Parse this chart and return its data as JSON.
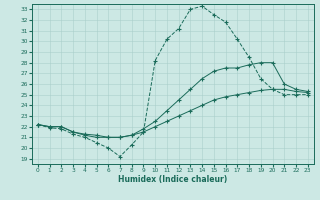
{
  "xlabel": "Humidex (Indice chaleur)",
  "bg_color": "#cce8e4",
  "line_color": "#1a6b5a",
  "grid_color": "#aacfcb",
  "xlim": [
    -0.5,
    23.5
  ],
  "ylim": [
    18.5,
    33.5
  ],
  "xticks": [
    0,
    1,
    2,
    3,
    4,
    5,
    6,
    7,
    8,
    9,
    10,
    11,
    12,
    13,
    14,
    15,
    16,
    17,
    18,
    19,
    20,
    21,
    22,
    23
  ],
  "yticks": [
    19,
    20,
    21,
    22,
    23,
    24,
    25,
    26,
    27,
    28,
    29,
    30,
    31,
    32,
    33
  ],
  "curve1_x": [
    0,
    1,
    2,
    3,
    4,
    5,
    6,
    7,
    8,
    9,
    10,
    11,
    12,
    13,
    14,
    15,
    16,
    17,
    18,
    19,
    20,
    21,
    22,
    23
  ],
  "curve1_y": [
    22.2,
    21.9,
    21.8,
    21.3,
    21.0,
    20.5,
    20.0,
    19.2,
    20.3,
    21.5,
    28.2,
    30.2,
    31.2,
    33.0,
    33.3,
    32.5,
    31.8,
    30.2,
    28.5,
    26.5,
    25.5,
    25.0,
    25.0,
    25.0
  ],
  "curve2_x": [
    0,
    1,
    2,
    3,
    4,
    5,
    6,
    7,
    8,
    9,
    10,
    11,
    12,
    13,
    14,
    15,
    16,
    17,
    18,
    19,
    20,
    21,
    22,
    23
  ],
  "curve2_y": [
    22.2,
    22.0,
    22.0,
    21.5,
    21.2,
    21.0,
    21.0,
    21.0,
    21.2,
    21.8,
    22.5,
    23.5,
    24.5,
    25.5,
    26.5,
    27.2,
    27.5,
    27.5,
    27.8,
    28.0,
    28.0,
    26.0,
    25.5,
    25.3
  ],
  "curve3_x": [
    0,
    1,
    2,
    3,
    4,
    5,
    6,
    7,
    8,
    9,
    10,
    11,
    12,
    13,
    14,
    15,
    16,
    17,
    18,
    19,
    20,
    21,
    22,
    23
  ],
  "curve3_y": [
    22.2,
    22.0,
    22.0,
    21.5,
    21.3,
    21.2,
    21.0,
    21.0,
    21.2,
    21.5,
    22.0,
    22.5,
    23.0,
    23.5,
    24.0,
    24.5,
    24.8,
    25.0,
    25.2,
    25.4,
    25.5,
    25.5,
    25.3,
    25.2
  ]
}
